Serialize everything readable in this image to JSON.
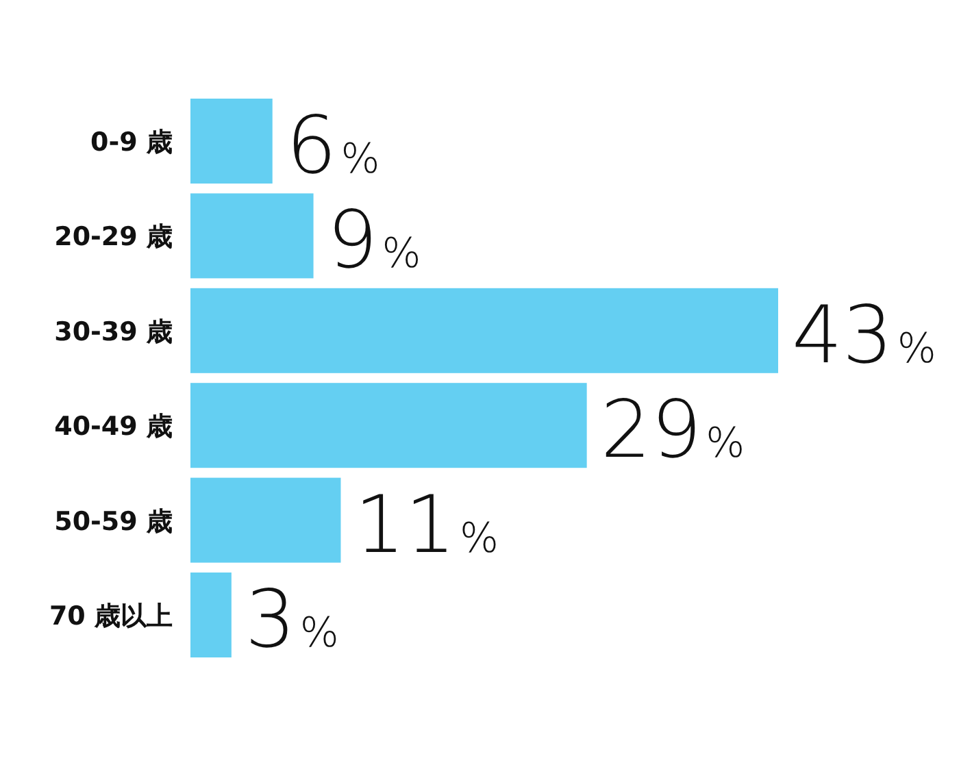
{
  "chart_data": {
    "type": "bar",
    "orientation": "horizontal",
    "categories": [
      "0-9 歳",
      "20-29 歳",
      "30-39 歳",
      "40-49 歳",
      "50-59 歳",
      "70 歳以上"
    ],
    "values": [
      6,
      9,
      43,
      29,
      11,
      3
    ],
    "color": "#64cff2",
    "value_labels": [
      "6%",
      "9%",
      "43%",
      "29%",
      "11%",
      "3%"
    ]
  }
}
